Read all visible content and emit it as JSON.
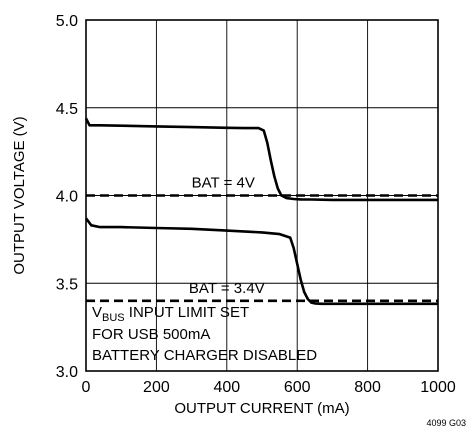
{
  "chart_data": {
    "type": "line",
    "title": "",
    "xlabel": "OUTPUT CURRENT (mA)",
    "ylabel": "OUTPUT VOLTAGE (V)",
    "xlim": [
      0,
      1000
    ],
    "ylim": [
      3.0,
      5.0
    ],
    "x_ticks": [
      0,
      200,
      400,
      600,
      800,
      1000
    ],
    "y_ticks": [
      3.0,
      3.5,
      4.0,
      4.5,
      5.0
    ],
    "x_tick_labels": [
      "0",
      "200",
      "400",
      "600",
      "800",
      "1000"
    ],
    "y_tick_labels": [
      "3.0",
      "3.5",
      "4.0",
      "4.5",
      "5.0"
    ],
    "grid": true,
    "series": [
      {
        "style": "solid",
        "x": [
          0,
          10,
          40,
          100,
          200,
          300,
          400,
          450,
          490,
          505,
          515,
          525,
          535,
          545,
          555,
          570,
          590,
          610,
          640,
          700,
          800,
          900,
          1000
        ],
        "y": [
          4.44,
          4.4,
          4.4,
          4.398,
          4.394,
          4.39,
          4.386,
          4.384,
          4.384,
          4.37,
          4.3,
          4.2,
          4.11,
          4.04,
          4.0,
          3.985,
          3.98,
          3.978,
          3.977,
          3.975,
          3.975,
          3.975,
          3.975
        ]
      },
      {
        "style": "solid",
        "x": [
          0,
          15,
          40,
          100,
          200,
          300,
          400,
          500,
          550,
          580,
          590,
          600,
          610,
          620,
          630,
          640,
          650,
          670,
          700,
          800,
          900,
          1000
        ],
        "y": [
          3.87,
          3.83,
          3.82,
          3.82,
          3.815,
          3.81,
          3.8,
          3.79,
          3.78,
          3.76,
          3.7,
          3.61,
          3.52,
          3.45,
          3.41,
          3.39,
          3.385,
          3.383,
          3.383,
          3.383,
          3.383,
          3.383
        ]
      },
      {
        "style": "dashed",
        "x": [
          0,
          1000
        ],
        "y": [
          4.0,
          4.0
        ]
      },
      {
        "style": "dashed",
        "x": [
          0,
          1000
        ],
        "y": [
          3.4,
          3.4
        ]
      }
    ],
    "annotations": [
      {
        "text": "BAT = 4V",
        "x": 390,
        "y": 4.045
      },
      {
        "text": "BAT = 3.4V",
        "x": 400,
        "y": 3.445
      }
    ],
    "notes": {
      "line1_main": "V",
      "line1_sub": "BUS",
      "line1_rest": " INPUT LIMIT SET",
      "line2": "FOR USB 500mA",
      "line3": "BATTERY CHARGER DISABLED"
    },
    "corner_code": "4099 G03"
  }
}
